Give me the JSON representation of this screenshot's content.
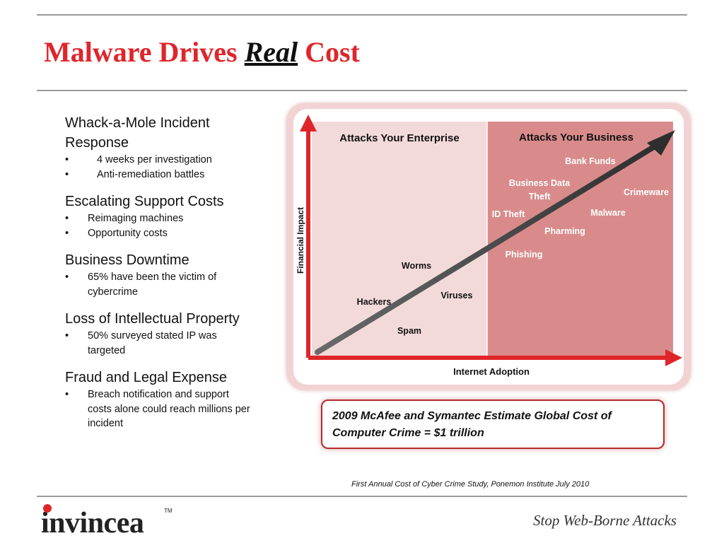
{
  "title": {
    "part1": "Malware Drives ",
    "emphasis": "Real",
    "part2": " Cost"
  },
  "sections": [
    {
      "heading": "Whack-a-Mole Incident Response",
      "bullets": [
        "4 weeks per investigation",
        "Anti-remediation battles"
      ]
    },
    {
      "heading": "Escalating Support Costs",
      "bullets": [
        "Reimaging machines",
        "Opportunity costs"
      ]
    },
    {
      "heading": "Business Downtime",
      "bullets": [
        "65% have been the victim of cybercrime"
      ]
    },
    {
      "heading": "Loss of Intellectual Property",
      "bullets": [
        "50% surveyed stated IP was targeted"
      ]
    },
    {
      "heading": "Fraud and Legal Expense",
      "bullets": [
        "Breach notification and support costs alone could reach millions per incident"
      ]
    }
  ],
  "chart_data": {
    "type": "diagram",
    "xlabel": "Internet Adoption",
    "ylabel": "Financial Impact",
    "regions": [
      {
        "label": "Attacks Your Enterprise",
        "color": "#f3dada"
      },
      {
        "label": "Attacks Your Business",
        "color": "#d98b8b"
      }
    ],
    "labels": [
      {
        "text": "Worms",
        "region": 0
      },
      {
        "text": "Hackers",
        "region": 0
      },
      {
        "text": "Viruses",
        "region": 0
      },
      {
        "text": "Spam",
        "region": 0
      },
      {
        "text": "Bank Funds",
        "region": 1
      },
      {
        "text": "Business Data",
        "region": 1
      },
      {
        "text": "Theft",
        "region": 1
      },
      {
        "text": "Crimeware",
        "region": 1
      },
      {
        "text": "ID Theft",
        "region": 1
      },
      {
        "text": "Malware",
        "region": 1
      },
      {
        "text": "Pharming",
        "region": 1
      },
      {
        "text": "Phishing",
        "region": 1
      }
    ],
    "colors": {
      "axis": "#e0252a",
      "trend": "#4a4a4a",
      "label_dark": "#111111",
      "label_light": "#ffffff"
    }
  },
  "estimate": {
    "line1": "2009 McAfee and Symantec Estimate Global Cost of",
    "line2": "Computer Crime = $1 trillion"
  },
  "citation": "First Annual Cost of Cyber Crime Study, Ponemon Institute July 2010",
  "logo": {
    "text": "invincea",
    "tm": "TM"
  },
  "tagline": "Stop Web-Borne Attacks"
}
